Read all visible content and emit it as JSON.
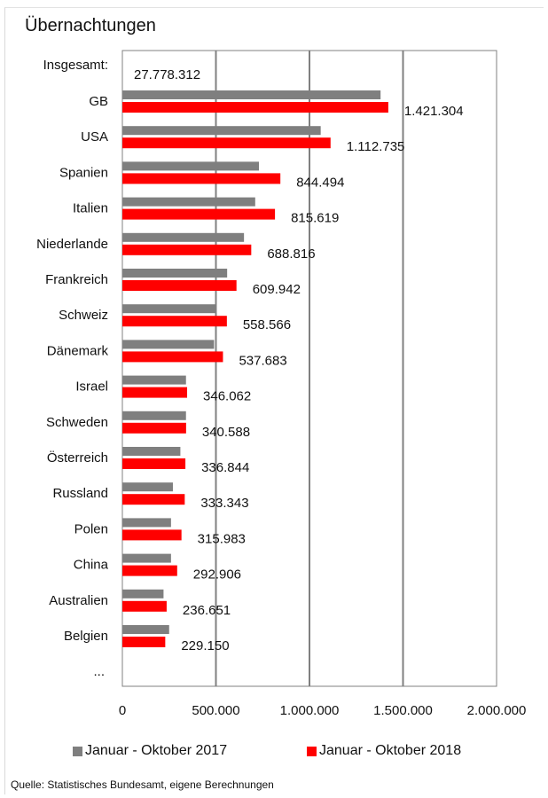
{
  "chart_data": {
    "type": "bar",
    "orientation": "horizontal",
    "title": "Übernachtungen",
    "total_label": "Insgesamt:",
    "total_value_label": "27.778.312",
    "categories": [
      "GB",
      "USA",
      "Spanien",
      "Italien",
      "Niederlande",
      "Frankreich",
      "Schweiz",
      "Dänemark",
      "Israel",
      "Schweden",
      "Österreich",
      "Russland",
      "Polen",
      "China",
      "Australien",
      "Belgien"
    ],
    "ellipsis_label": "...",
    "series": [
      {
        "name": "Januar - Oktober 2017",
        "color": "#7f7f7f",
        "values": [
          1380000,
          1060000,
          730000,
          710000,
          650000,
          560000,
          500000,
          490000,
          340000,
          340000,
          310000,
          270000,
          260000,
          260000,
          220000,
          250000
        ]
      },
      {
        "name": "Januar - Oktober 2018",
        "color": "#ff0000",
        "values": [
          1421304,
          1112735,
          844494,
          815619,
          688816,
          609942,
          558566,
          537683,
          346062,
          340588,
          336844,
          333343,
          315983,
          292906,
          236651,
          229150
        ],
        "value_labels": [
          "1.421.304",
          "1.112.735",
          "844.494",
          "815.619",
          "688.816",
          "609.942",
          "558.566",
          "537.683",
          "346.062",
          "340.588",
          "336.844",
          "333.343",
          "315.983",
          "292.906",
          "236.651",
          "229.150"
        ]
      }
    ],
    "xlim": [
      0,
      2000000
    ],
    "xticks": [
      0,
      500000,
      1000000,
      1500000,
      2000000
    ],
    "xtick_labels": [
      "0",
      "500.000",
      "1.000.000",
      "1.500.000",
      "2.000.000"
    ],
    "grid": true,
    "legend_position": "bottom"
  },
  "source_note": "Quelle: Statistisches Bundesamt, eigene Berechnungen"
}
